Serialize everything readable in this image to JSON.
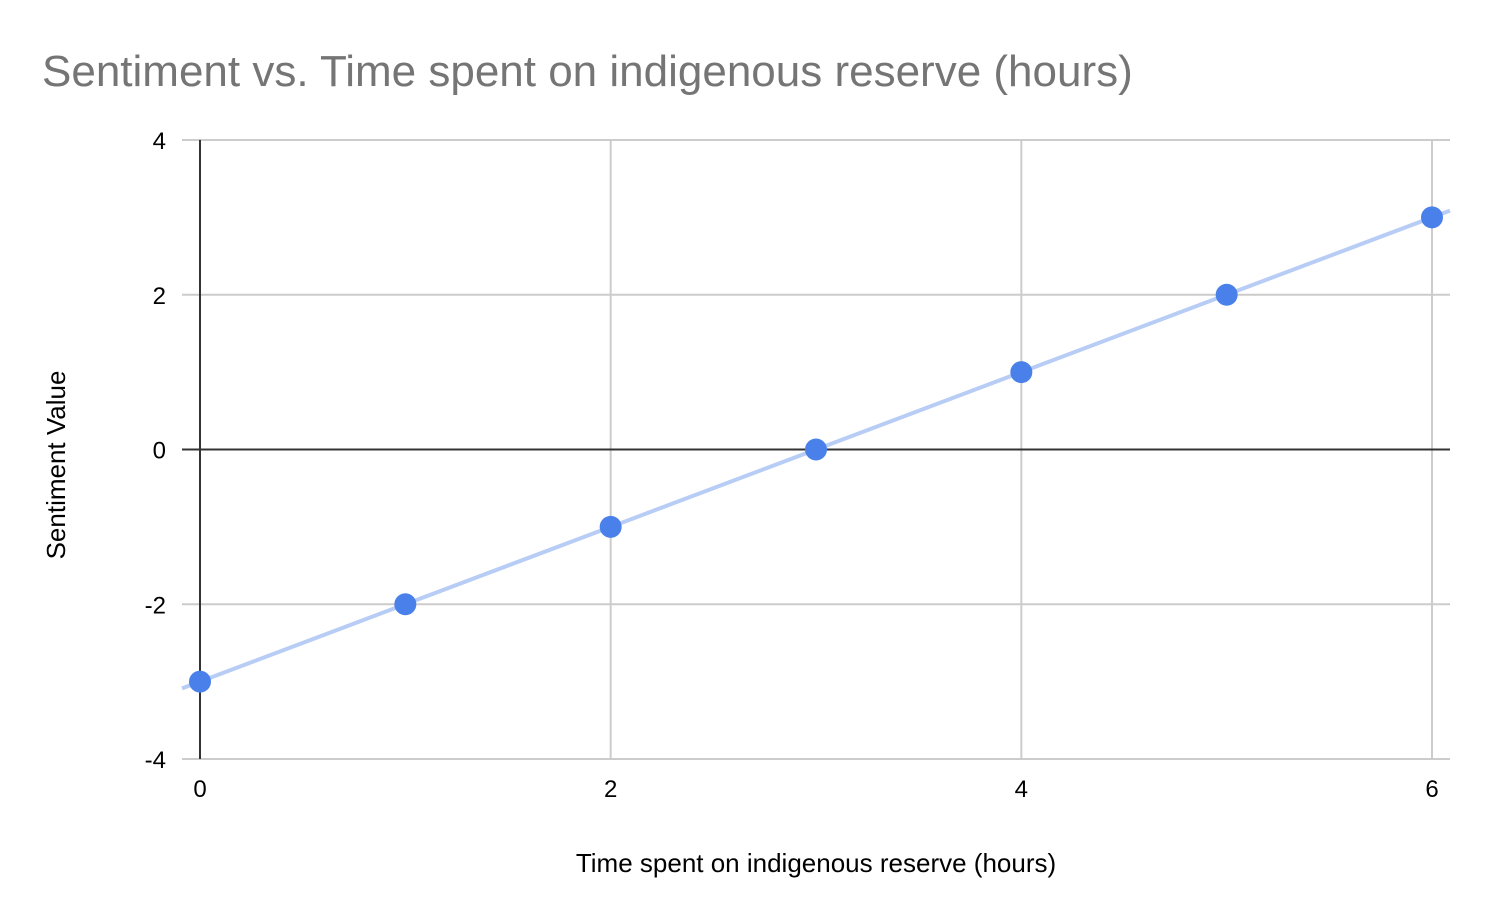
{
  "chart_data": {
    "type": "scatter",
    "title": "Sentiment vs. Time spent on indigenous reserve (hours)",
    "xlabel": "Time spent on indigenous reserve (hours)",
    "ylabel": "Sentiment Value",
    "xlim": [
      0,
      6
    ],
    "ylim": [
      -4,
      4
    ],
    "x_ticks": [
      0,
      2,
      4,
      6
    ],
    "y_ticks": [
      -4,
      -2,
      0,
      2,
      4
    ],
    "grid": true,
    "legend": "none",
    "points": [
      {
        "x": 0,
        "y": -3
      },
      {
        "x": 1,
        "y": -2
      },
      {
        "x": 2,
        "y": -1
      },
      {
        "x": 3,
        "y": 0
      },
      {
        "x": 4,
        "y": 1
      },
      {
        "x": 5,
        "y": 2
      },
      {
        "x": 6,
        "y": 3
      }
    ],
    "trendline": {
      "slope": 1,
      "intercept": -3
    },
    "colors": {
      "point": "#4a80ea",
      "trendline": "#b8cdf5",
      "grid": "#cccccc",
      "zero_axis": "#333333",
      "title": "#757575"
    }
  }
}
